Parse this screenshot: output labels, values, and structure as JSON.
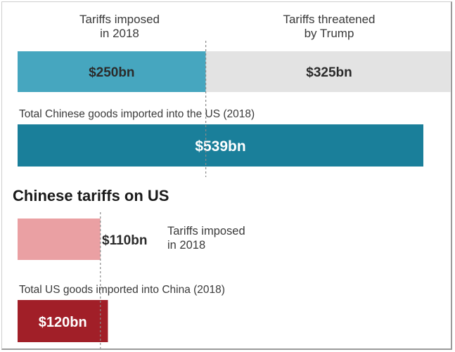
{
  "colors": {
    "us_imposed": "#46a6bf",
    "us_threatened": "#e3e3e3",
    "us_total": "#1a7f9a",
    "cn_imposed": "#eaa0a3",
    "cn_total": "#a11f28",
    "label_dark": "#2b2b2b",
    "label_light": "#ffffff",
    "divider": "#8a8a8a"
  },
  "chart_data": [
    {
      "type": "bar",
      "orientation": "horizontal",
      "stacked": true,
      "header_left": "Tariffs imposed\nin 2018",
      "header_right": "Tariffs threatened\nby Trump",
      "series": [
        {
          "name": "Tariffs imposed in 2018",
          "values": [
            250
          ],
          "label": "$250bn"
        },
        {
          "name": "Tariffs threatened by Trump",
          "values": [
            325
          ],
          "label": "$325bn"
        }
      ],
      "unit": "$bn",
      "total_caption": "Total Chinese goods imported into the US (2018)",
      "total_value": 539,
      "total_label": "$539bn"
    },
    {
      "type": "bar",
      "orientation": "horizontal",
      "title": "Chinese tariffs on US",
      "series": [
        {
          "name": "Tariffs imposed\nin 2018",
          "values": [
            110
          ],
          "label": "$110bn"
        }
      ],
      "unit": "$bn",
      "total_caption": "Total US goods imported into China (2018)",
      "total_value": 120,
      "total_label": "$120bn"
    }
  ]
}
